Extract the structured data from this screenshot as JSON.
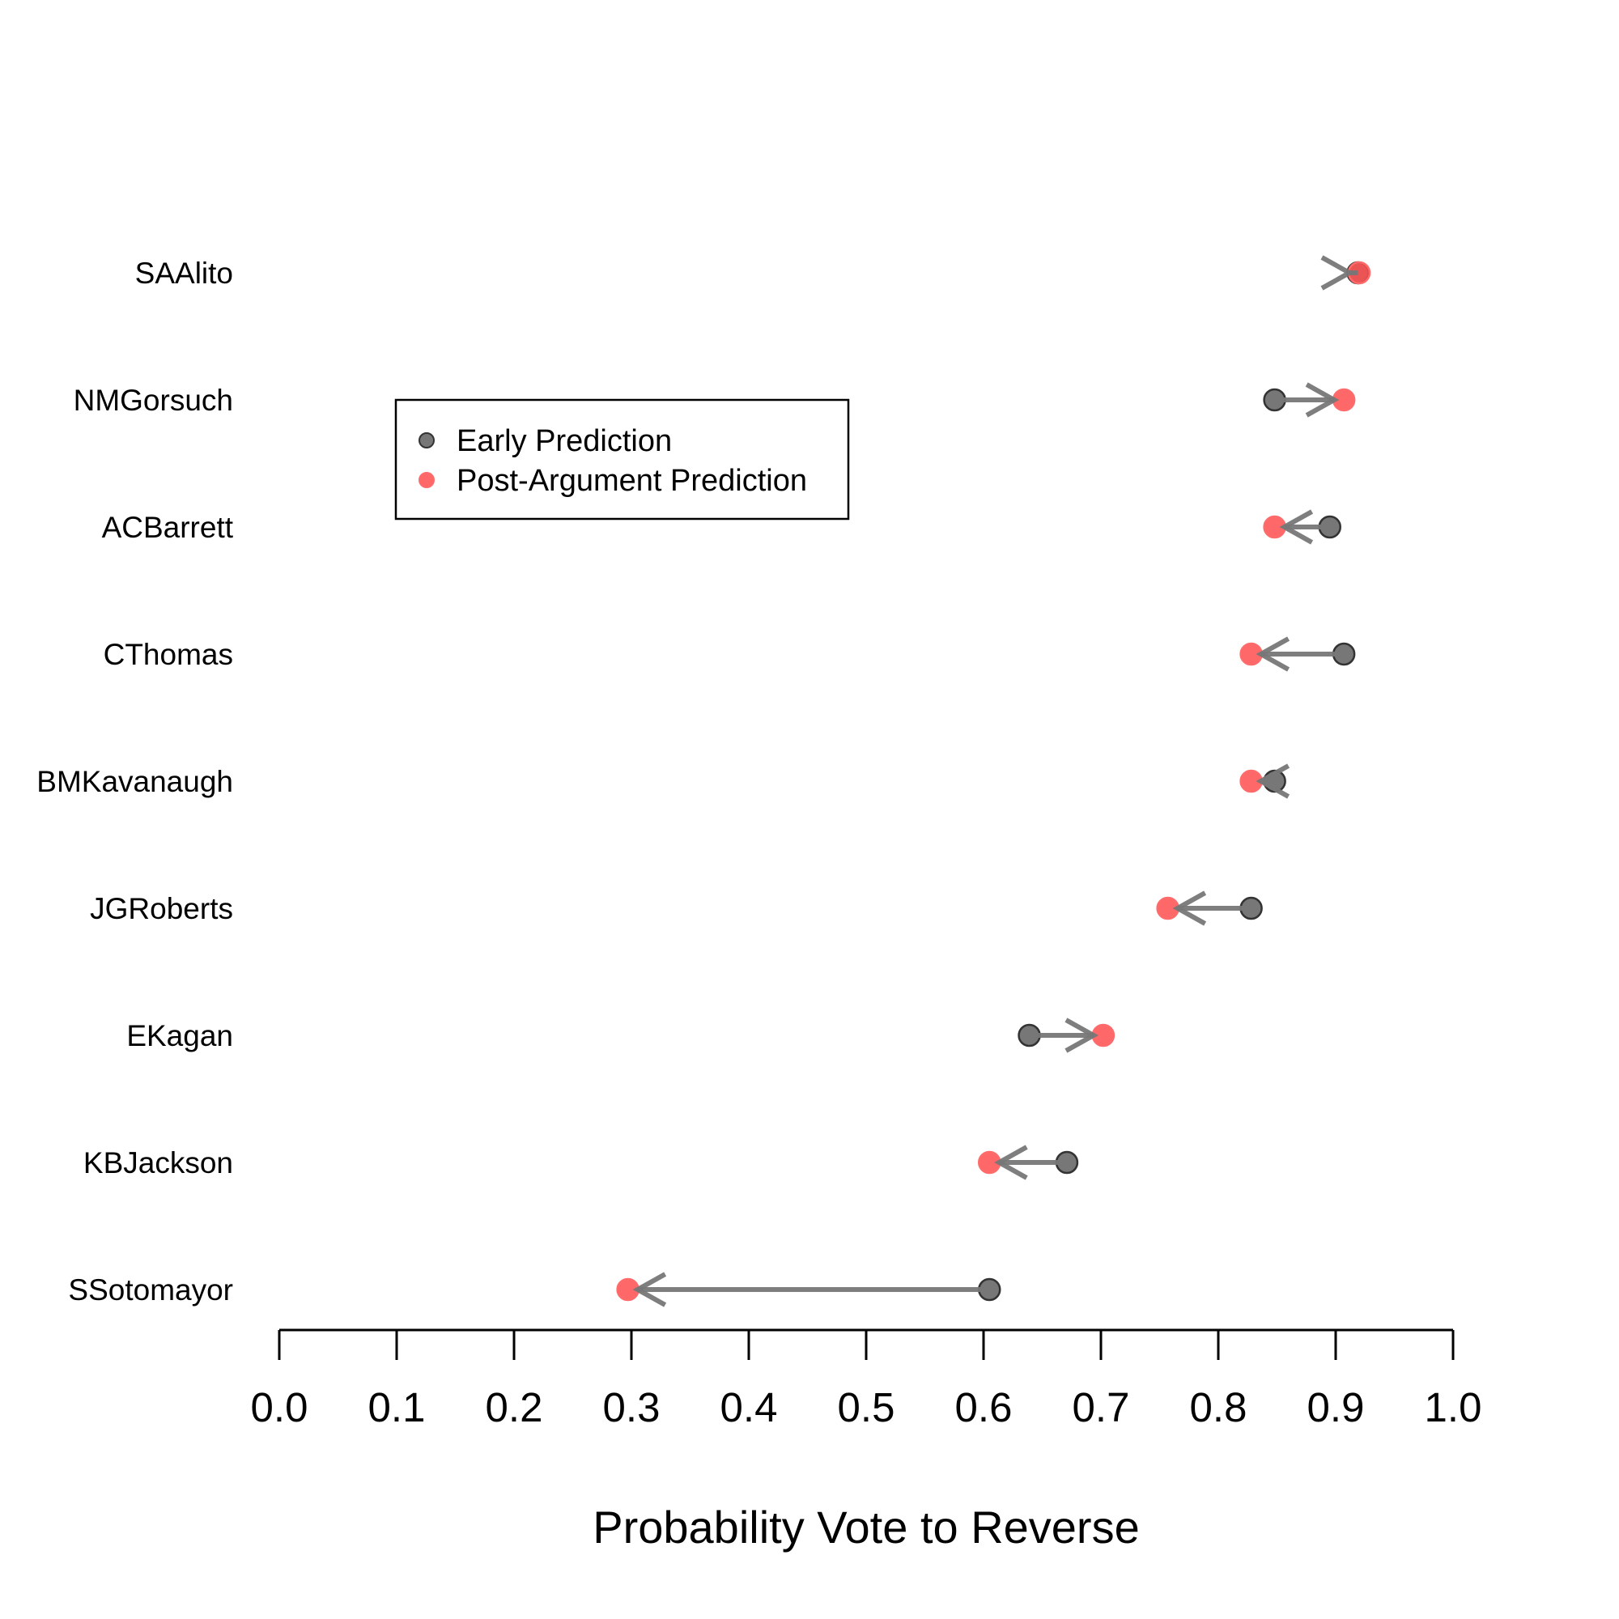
{
  "chart_data": {
    "type": "scatter",
    "xlabel": "Probability Vote to Reverse",
    "xlim": [
      0.0,
      1.0
    ],
    "xticks": [
      "0.0",
      "0.1",
      "0.2",
      "0.3",
      "0.4",
      "0.5",
      "0.6",
      "0.7",
      "0.8",
      "0.9",
      "1.0"
    ],
    "grid": false,
    "legend_position": "top-left",
    "categories": [
      "SAAlito",
      "NMGorsuch",
      "ACBarrett",
      "CThomas",
      "BMKavanaugh",
      "JGRoberts",
      "EKagan",
      "KBJackson",
      "SSotomayor"
    ],
    "series": [
      {
        "name": "Early Prediction",
        "color": "#555555",
        "values": [
          0.919,
          0.848,
          0.895,
          0.907,
          0.848,
          0.828,
          0.639,
          0.671,
          0.605
        ]
      },
      {
        "name": "Post-Argument Prediction",
        "color": "#ff4d4d",
        "values": [
          0.92,
          0.907,
          0.848,
          0.828,
          0.828,
          0.757,
          0.702,
          0.605,
          0.297
        ]
      }
    ],
    "arrow_color": "#777777",
    "arrows": "from Early Prediction to Post-Argument Prediction"
  }
}
